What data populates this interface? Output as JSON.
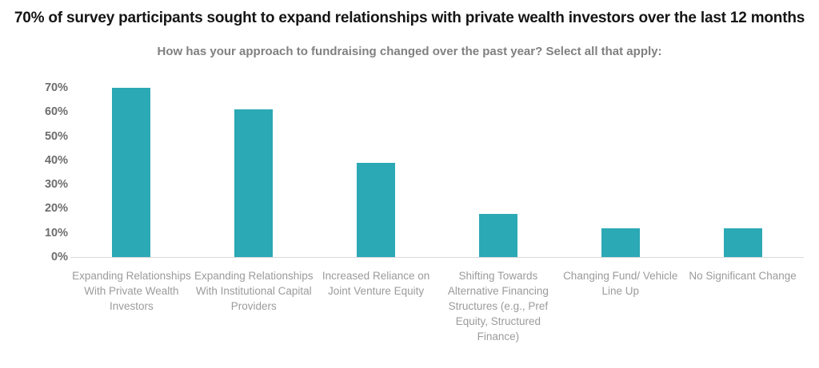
{
  "header": {
    "title": "70% of survey participants sought to expand relationships with private wealth investors over the last 12 months"
  },
  "chart_data": {
    "type": "bar",
    "title": "70% of survey participants sought to expand relationships with private wealth investors over the last 12 months",
    "subtitle": "How has your approach to fundraising changed over the past year? Select all that apply:",
    "categories": [
      "Expanding Relationships With Private Wealth Investors",
      "Expanding Relationships With Institutional Capital Providers",
      "Increased Reliance on Joint Venture Equity",
      "Shifting Towards Alternative Financing Structures (e.g., Pref Equity, Structured Finance)",
      "Changing Fund/ Vehicle Line Up",
      "No Significant Change"
    ],
    "values": [
      70,
      61,
      39,
      18,
      12,
      12
    ],
    "unit": "%",
    "ylim": [
      0,
      70
    ],
    "ytick_step": 10,
    "yticks": [
      "70%",
      "60%",
      "50%",
      "40%",
      "30%",
      "20%",
      "10%",
      "0%"
    ],
    "grid": false,
    "legend": null,
    "xlabel": "",
    "ylabel": ""
  },
  "colors": {
    "bar": "#2ba9b4",
    "axis_line": "#d9d9d9",
    "y_tick_text": "#6d6d6d",
    "x_label_text": "#9b9b9b",
    "title_text": "#151515",
    "subtitle_text": "#808080"
  }
}
